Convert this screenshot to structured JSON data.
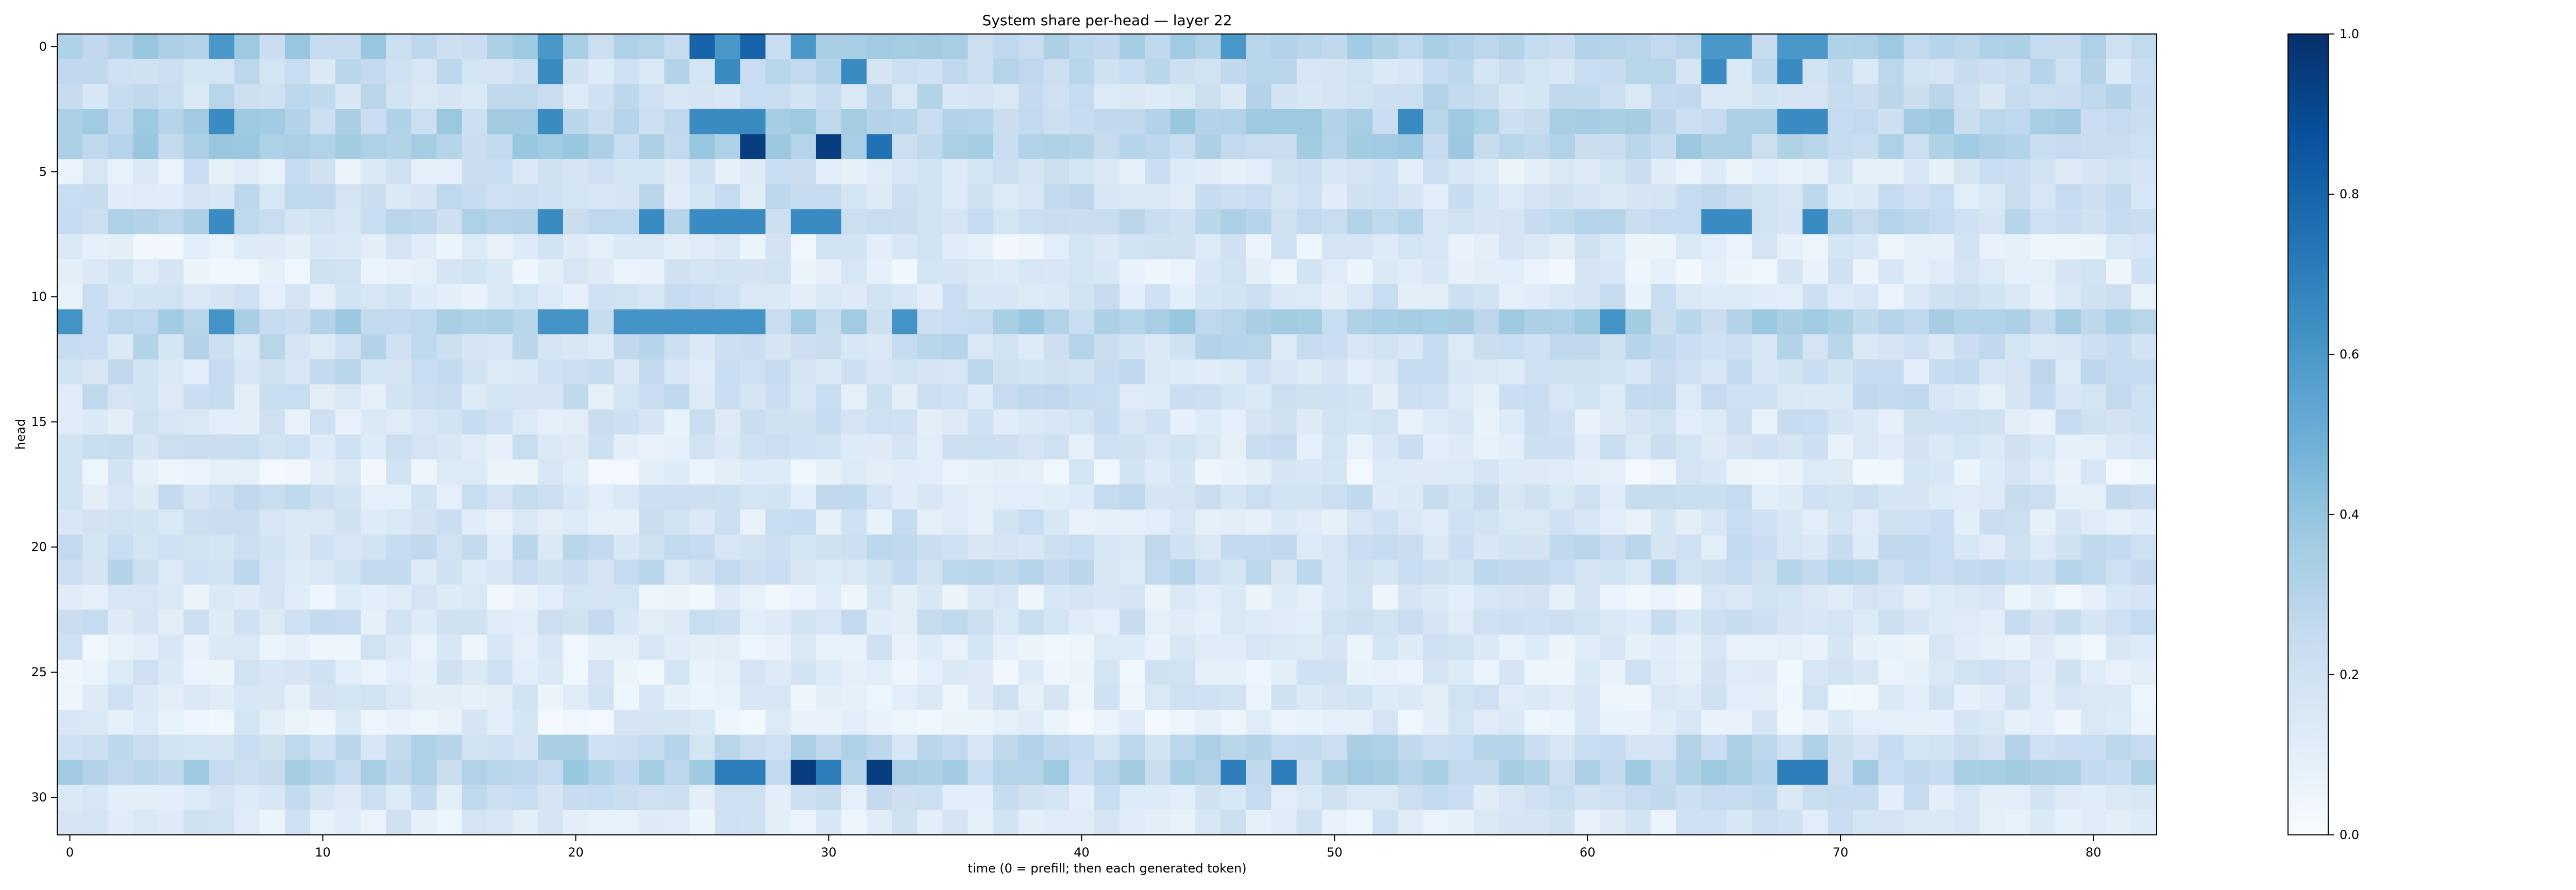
{
  "chart_data": {
    "type": "heatmap",
    "title": "System share per-head — layer 22",
    "xlabel": "time (0 = prefill; then each generated token)",
    "ylabel": "head",
    "x_range": [
      0,
      82
    ],
    "y_range": [
      0,
      31
    ],
    "x_ticks": [
      0,
      10,
      20,
      30,
      40,
      50,
      60,
      70,
      80
    ],
    "y_ticks": [
      0,
      5,
      10,
      15,
      20,
      25,
      30
    ],
    "colorbar": {
      "colormap": "Blues",
      "min": 0.0,
      "max": 1.0,
      "ticks": [
        "0.0",
        "0.2",
        "0.4",
        "0.6",
        "0.8",
        "1.0"
      ]
    },
    "highlights": [
      {
        "head": 0,
        "times": [
          6,
          19,
          26,
          29,
          46,
          65,
          66,
          68,
          69
        ],
        "value": 0.6
      },
      {
        "head": 0,
        "times": [
          25,
          27
        ],
        "value": 0.8
      },
      {
        "head": 1,
        "times": [
          19,
          26,
          31,
          65,
          68
        ],
        "value": 0.65
      },
      {
        "head": 3,
        "times": [
          6,
          19,
          25,
          26,
          27,
          53,
          68,
          69
        ],
        "value": 0.65
      },
      {
        "head": 4,
        "times": [
          27,
          30
        ],
        "value": 0.95
      },
      {
        "head": 4,
        "times": [
          32
        ],
        "value": 0.75
      },
      {
        "head": 7,
        "times": [
          6,
          19,
          23,
          25,
          26,
          27,
          29,
          30,
          65,
          66,
          69
        ],
        "value": 0.65
      },
      {
        "head": 11,
        "times": [
          0,
          6,
          19,
          20,
          22,
          23,
          24,
          25,
          26,
          27,
          33,
          61
        ],
        "value": 0.62
      },
      {
        "head": 29,
        "times": [
          26,
          27,
          29,
          30,
          32,
          46,
          48,
          68,
          69
        ],
        "value": 0.7
      },
      {
        "head": 29,
        "times": [
          29,
          32
        ],
        "value": 0.95
      }
    ],
    "row_levels": [
      0.3,
      0.22,
      0.22,
      0.3,
      0.3,
      0.15,
      0.2,
      0.25,
      0.12,
      0.12,
      0.15,
      0.3,
      0.22,
      0.2,
      0.18,
      0.16,
      0.16,
      0.1,
      0.18,
      0.16,
      0.2,
      0.22,
      0.12,
      0.18,
      0.12,
      0.12,
      0.12,
      0.1,
      0.25,
      0.3,
      0.18,
      0.14
    ]
  }
}
